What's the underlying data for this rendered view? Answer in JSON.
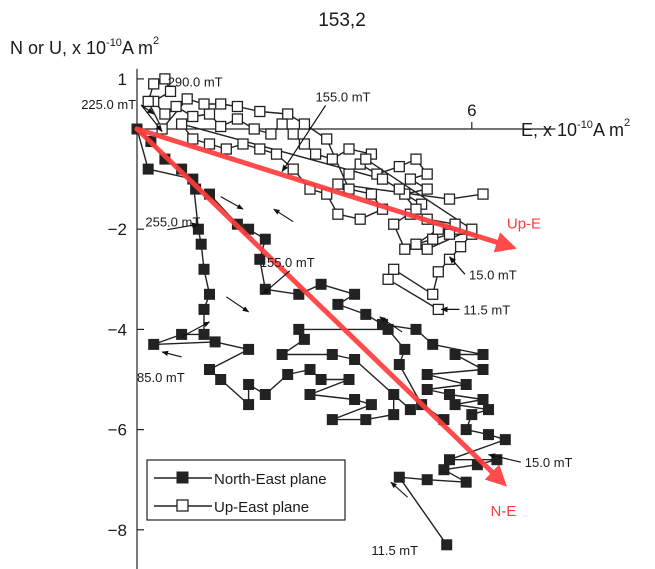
{
  "chart_data": {
    "type": "scatter",
    "title": "153,2",
    "ylabel": {
      "main": "N or U, x 10",
      "exp": "-10",
      "unit": "A m",
      "unit_exp": "2"
    },
    "xlabel": {
      "main": "E, x 10",
      "exp": "-10",
      "unit": "A m",
      "unit_exp": "2"
    },
    "xlim": [
      0,
      7.5
    ],
    "ylim": [
      -8.8,
      1.2
    ],
    "y_ticks": [
      1,
      -2,
      -4,
      -6,
      -8
    ],
    "y_tick_labels": [
      "1",
      "−2",
      "−4",
      "−6",
      "−8"
    ],
    "x_ticks": [
      6
    ],
    "x_tick_labels": [
      "6"
    ],
    "grid": false,
    "legend_position": "bottom-left",
    "series": [
      {
        "name": "North-East plane",
        "marker": "filled-square",
        "color": "#222222",
        "points": [
          [
            5.55,
            -8.3
          ],
          [
            4.7,
            -6.95
          ],
          [
            5.2,
            -7.0
          ],
          [
            5.9,
            -7.05
          ],
          [
            5.5,
            -6.8
          ],
          [
            6.1,
            -6.7
          ],
          [
            6.45,
            -6.6
          ],
          [
            5.6,
            -6.6
          ],
          [
            6.6,
            -6.2
          ],
          [
            6.3,
            -6.1
          ],
          [
            5.9,
            -6.0
          ],
          [
            6.0,
            -5.7
          ],
          [
            6.3,
            -5.6
          ],
          [
            5.7,
            -5.5
          ],
          [
            6.2,
            -5.4
          ],
          [
            5.6,
            -5.3
          ],
          [
            5.2,
            -5.2
          ],
          [
            5.9,
            -5.1
          ],
          [
            5.2,
            -4.9
          ],
          [
            6.2,
            -4.8
          ],
          [
            5.7,
            -4.5
          ],
          [
            6.2,
            -4.5
          ],
          [
            5.3,
            -4.3
          ],
          [
            5.0,
            -4.0
          ],
          [
            4.4,
            -3.9
          ],
          [
            4.1,
            -3.7
          ],
          [
            3.6,
            -3.5
          ],
          [
            3.9,
            -3.3
          ],
          [
            3.3,
            -3.1
          ],
          [
            2.9,
            -3.3
          ],
          [
            2.3,
            -3.2
          ],
          [
            2.2,
            -2.6
          ],
          [
            2.3,
            -2.2
          ],
          [
            2.0,
            -2.0
          ],
          [
            1.8,
            -1.9
          ],
          [
            1.3,
            -1.3
          ],
          [
            1.05,
            -1.2
          ],
          [
            0.8,
            -0.8
          ],
          [
            0.5,
            -0.6
          ],
          [
            0.25,
            -0.25
          ],
          [
            0.0,
            0.0
          ],
          [
            0.2,
            -0.8
          ],
          [
            1.0,
            -1.0
          ],
          [
            1.1,
            -2.0
          ],
          [
            1.15,
            -2.3
          ],
          [
            1.2,
            -2.8
          ],
          [
            1.3,
            -3.3
          ],
          [
            1.2,
            -3.6
          ],
          [
            1.2,
            -4.1
          ],
          [
            0.8,
            -4.1
          ],
          [
            0.3,
            -4.3
          ],
          [
            1.4,
            -4.25
          ],
          [
            2.0,
            -4.4
          ],
          [
            1.3,
            -4.8
          ],
          [
            1.5,
            -5.0
          ],
          [
            2.0,
            -5.5
          ],
          [
            2.0,
            -5.1
          ],
          [
            2.3,
            -5.3
          ],
          [
            2.7,
            -4.9
          ],
          [
            3.1,
            -4.8
          ],
          [
            3.3,
            -5.0
          ],
          [
            3.8,
            -5.0
          ],
          [
            3.1,
            -5.3
          ],
          [
            3.9,
            -5.4
          ],
          [
            4.2,
            -5.5
          ],
          [
            3.5,
            -5.8
          ],
          [
            4.1,
            -5.8
          ],
          [
            4.6,
            -5.7
          ],
          [
            4.6,
            -5.3
          ],
          [
            4.9,
            -5.6
          ],
          [
            3.9,
            -4.6
          ],
          [
            3.5,
            -4.5
          ],
          [
            2.6,
            -4.5
          ],
          [
            3.0,
            -4.2
          ],
          [
            2.9,
            -4.0
          ],
          [
            4.5,
            -4.0
          ],
          [
            4.8,
            -4.4
          ],
          [
            4.7,
            -4.7
          ],
          [
            5.1,
            -5.5
          ],
          [
            5.5,
            -5.8
          ]
        ]
      },
      {
        "name": "Up-East plane",
        "marker": "open-square",
        "color": "#222222",
        "points": [
          [
            5.4,
            -3.6
          ],
          [
            4.5,
            -3.0
          ],
          [
            4.6,
            -2.8
          ],
          [
            5.3,
            -3.3
          ],
          [
            5.4,
            -2.85
          ],
          [
            5.6,
            -2.6
          ],
          [
            5.8,
            -2.35
          ],
          [
            6.0,
            -2.1
          ],
          [
            5.6,
            -2.1
          ],
          [
            5.3,
            -2.2
          ],
          [
            5.0,
            -2.3
          ],
          [
            5.4,
            -2.0
          ],
          [
            5.7,
            -1.9
          ],
          [
            5.2,
            -1.8
          ],
          [
            4.9,
            -1.7
          ],
          [
            5.1,
            -1.5
          ],
          [
            4.8,
            -1.3
          ],
          [
            5.2,
            -1.2
          ],
          [
            4.9,
            -1.0
          ],
          [
            5.2,
            -0.9
          ],
          [
            5.0,
            -0.6
          ],
          [
            4.7,
            -0.75
          ],
          [
            4.3,
            -0.9
          ],
          [
            4.0,
            -0.7
          ],
          [
            4.2,
            -0.5
          ],
          [
            3.8,
            -0.4
          ],
          [
            3.5,
            -0.6
          ],
          [
            3.2,
            -0.5
          ],
          [
            3.0,
            -0.3
          ],
          [
            2.8,
            -0.1
          ],
          [
            2.6,
            0.1
          ],
          [
            2.4,
            -0.1
          ],
          [
            2.1,
            0.0
          ],
          [
            1.8,
            0.2
          ],
          [
            1.5,
            0.05
          ],
          [
            1.3,
            0.3
          ],
          [
            1.0,
            0.25
          ],
          [
            0.7,
            0.45
          ],
          [
            0.5,
            0.3
          ],
          [
            0.3,
            0.55
          ],
          [
            0.6,
            0.75
          ],
          [
            0.5,
            1.0
          ],
          [
            0.3,
            0.9
          ],
          [
            0.2,
            0.55
          ],
          [
            0.45,
            0.0
          ],
          [
            0.9,
            0.6
          ],
          [
            1.2,
            0.5
          ],
          [
            1.5,
            0.5
          ],
          [
            1.8,
            0.45
          ],
          [
            2.2,
            0.35
          ],
          [
            2.7,
            0.3
          ],
          [
            3.0,
            0.1
          ],
          [
            3.4,
            -0.2
          ],
          [
            3.8,
            -1.2
          ],
          [
            4.2,
            -1.3
          ],
          [
            4.4,
            -1.6
          ],
          [
            4.0,
            -1.8
          ],
          [
            3.6,
            -1.7
          ],
          [
            3.4,
            -1.3
          ],
          [
            3.1,
            -1.2
          ],
          [
            2.8,
            -0.8
          ],
          [
            2.5,
            -0.5
          ],
          [
            2.2,
            -0.4
          ],
          [
            1.9,
            -0.3
          ],
          [
            1.6,
            -0.4
          ],
          [
            1.3,
            -0.3
          ],
          [
            1.0,
            -0.2
          ],
          [
            0.8,
            0.1
          ],
          [
            4.4,
            -1.0
          ],
          [
            4.7,
            -1.2
          ],
          [
            5.0,
            -1.6
          ],
          [
            4.6,
            -1.9
          ],
          [
            4.8,
            -2.4
          ],
          [
            5.2,
            -2.4
          ],
          [
            6.0,
            -2.0
          ],
          [
            4.1,
            -0.6
          ],
          [
            3.8,
            -0.9
          ],
          [
            3.6,
            -1.1
          ],
          [
            5.6,
            -1.4
          ],
          [
            6.2,
            -1.3
          ]
        ]
      }
    ],
    "fit_lines": [
      {
        "name": "Up-E",
        "from": [
          0.0,
          0.0
        ],
        "to": [
          6.7,
          -2.35
        ],
        "color": "#ff3c3c"
      },
      {
        "name": "N-E",
        "from": [
          0.0,
          0.0
        ],
        "to": [
          6.55,
          -7.05
        ],
        "color": "#ff3c3c"
      }
    ],
    "annotations": [
      {
        "text": "290.0 mT",
        "at": [
          0.55,
          0.85
        ],
        "arrow_to": null
      },
      {
        "text": "225.0 mT",
        "at": [
          -1.0,
          0.4
        ],
        "arrow_to": [
          [
            0.3,
            0.3
          ],
          [
            0.45,
            -0.05
          ]
        ]
      },
      {
        "text": "155.0 mT",
        "at": [
          3.2,
          0.55
        ],
        "arrow_to": [
          [
            2.6,
            -0.85
          ]
        ]
      },
      {
        "text": "255.0 mT",
        "at": [
          0.15,
          -1.95
        ],
        "arrow_to": [
          [
            1.1,
            -1.9
          ]
        ]
      },
      {
        "text": "155.0 mT",
        "at": [
          2.2,
          -2.75
        ],
        "arrow_to": [
          [
            2.25,
            -3.3
          ]
        ]
      },
      {
        "text": "15.0 mT",
        "at": [
          5.95,
          -3.0
        ],
        "arrow_to": [
          [
            5.6,
            -2.55
          ]
        ]
      },
      {
        "text": "11.5 mT",
        "at": [
          5.85,
          -3.7
        ],
        "arrow_to": [
          [
            5.45,
            -3.6
          ]
        ]
      },
      {
        "text": "85.0 mT",
        "at": [
          0.0,
          -5.05
        ],
        "arrow_to": null
      },
      {
        "text": "15.0 mT",
        "at": [
          6.95,
          -6.75
        ],
        "arrow_to": [
          [
            6.3,
            -6.5
          ]
        ]
      },
      {
        "text": "11.5 mT",
        "at": [
          4.2,
          -8.5
        ],
        "arrow_to": null
      }
    ],
    "direction_arrows": [
      [
        [
          0.8,
          -4.15
        ],
        [
          1.3,
          -3.85
        ]
      ],
      [
        [
          0.8,
          -4.55
        ],
        [
          0.45,
          -4.45
        ]
      ],
      [
        [
          1.5,
          -1.35
        ],
        [
          1.9,
          -1.6
        ]
      ],
      [
        [
          2.8,
          -1.85
        ],
        [
          2.45,
          -1.6
        ]
      ],
      [
        [
          1.6,
          -3.35
        ],
        [
          2.0,
          -3.65
        ]
      ],
      [
        [
          4.75,
          -4.05
        ],
        [
          4.35,
          -3.75
        ]
      ],
      [
        [
          4.85,
          -7.35
        ],
        [
          4.55,
          -7.05
        ]
      ]
    ]
  }
}
